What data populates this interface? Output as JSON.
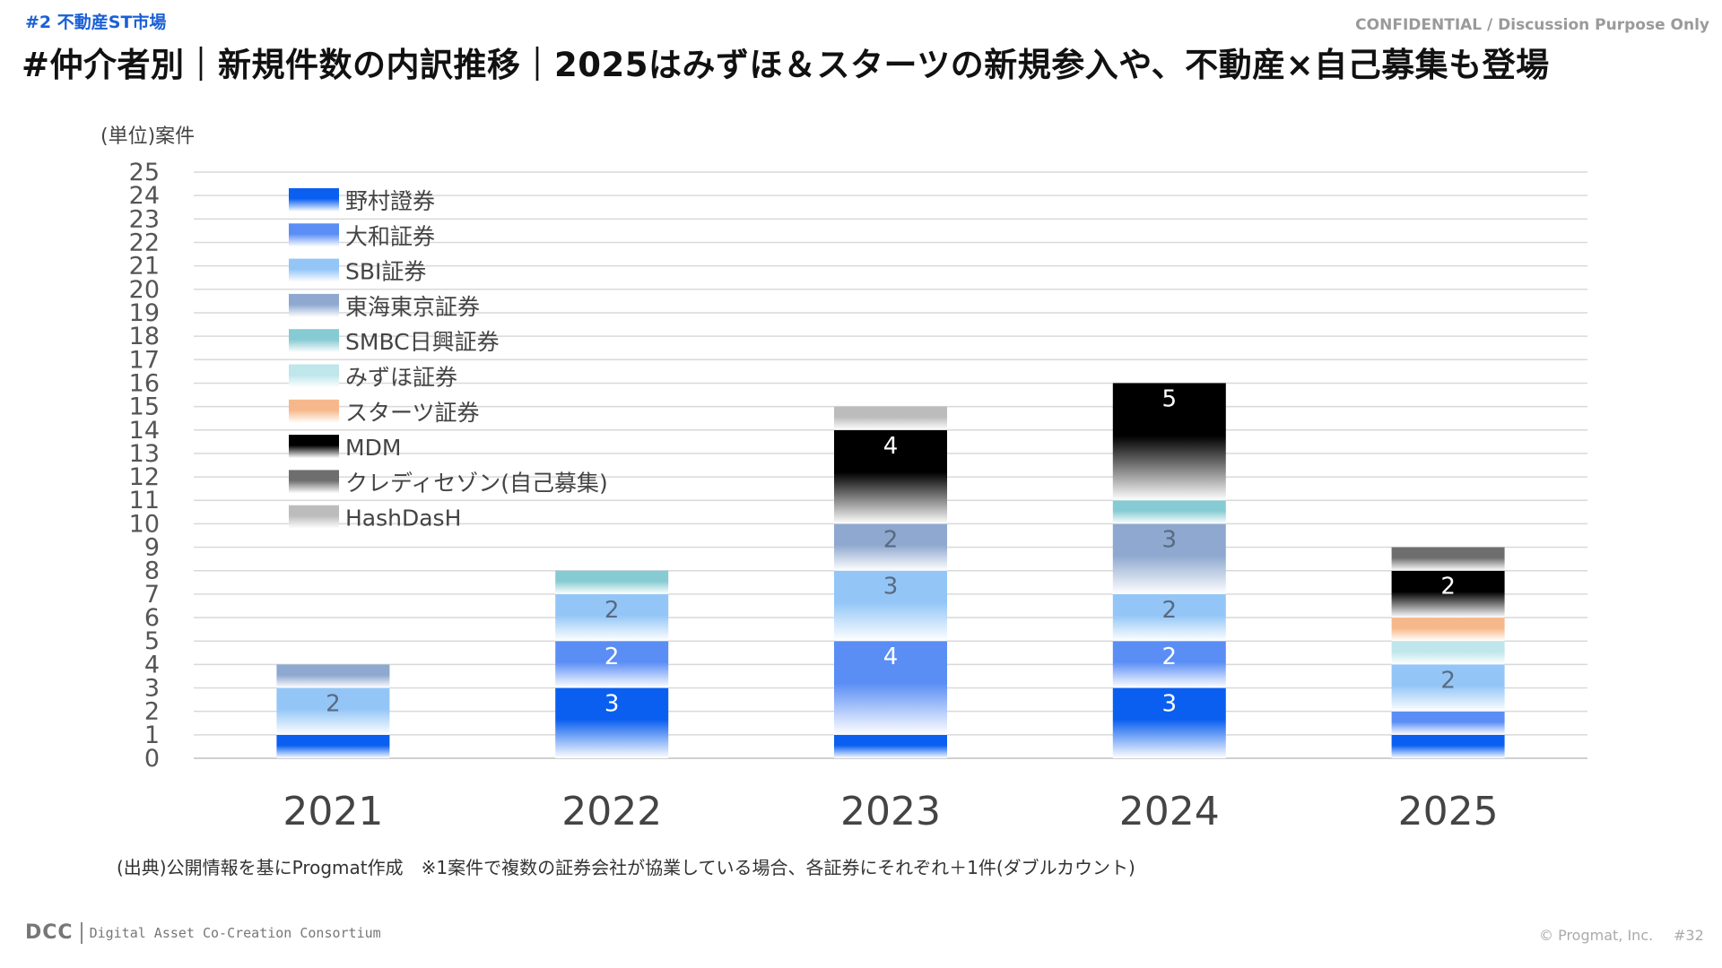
{
  "header": {
    "section_tag": "#2 不動産ST市場",
    "confidential": "CONFIDENTIAL / Discussion Purpose Only",
    "title": "#仲介者別｜新規件数の内訳推移｜2025はみずほ＆スターツの新規参入や、不動産×自己募集も登場"
  },
  "unit_label": "(単位)案件",
  "chart_data": {
    "type": "bar",
    "stacked": true,
    "categories": [
      "2021",
      "2022",
      "2023",
      "2024",
      "2025"
    ],
    "ylim": [
      0,
      25
    ],
    "y_ticks": [
      0,
      1,
      2,
      3,
      4,
      5,
      6,
      7,
      8,
      9,
      10,
      11,
      12,
      13,
      14,
      15,
      16,
      17,
      18,
      19,
      20,
      21,
      22,
      23,
      24,
      25
    ],
    "grid": true,
    "legend_position": "top-left",
    "series": [
      {
        "name": "野村證券",
        "values": [
          1,
          3,
          1,
          3,
          1
        ],
        "color": "#0a5ff0"
      },
      {
        "name": "大和証券",
        "values": [
          0,
          2,
          4,
          2,
          1
        ],
        "color": "#5a8ef5"
      },
      {
        "name": "SBI証券",
        "values": [
          2,
          2,
          3,
          2,
          2
        ],
        "color": "#93c6f7"
      },
      {
        "name": "東海東京証券",
        "values": [
          1,
          0,
          2,
          3,
          0
        ],
        "color": "#8ea8cf"
      },
      {
        "name": "SMBC日興証券",
        "values": [
          0,
          1,
          0,
          1,
          0
        ],
        "color": "#86cbd3"
      },
      {
        "name": "みずほ証券",
        "values": [
          0,
          0,
          0,
          0,
          1
        ],
        "color": "#bfe6ea"
      },
      {
        "name": "スターツ証券",
        "values": [
          0,
          0,
          0,
          0,
          1
        ],
        "color": "#f6b88a"
      },
      {
        "name": "MDM",
        "values": [
          0,
          0,
          4,
          5,
          2
        ],
        "color": "#000000"
      },
      {
        "name": "クレディセゾン(自己募集)",
        "values": [
          0,
          0,
          0,
          0,
          1
        ],
        "color": "#6e6e6e"
      },
      {
        "name": "HashDasH",
        "values": [
          0,
          0,
          1,
          0,
          0
        ],
        "color": "#bcbcbc"
      }
    ],
    "data_labels": [
      {
        "category": "2021",
        "series": "SBI証券",
        "text": "2"
      },
      {
        "category": "2022",
        "series": "野村證券",
        "text": "3"
      },
      {
        "category": "2022",
        "series": "大和証券",
        "text": "2"
      },
      {
        "category": "2022",
        "series": "SBI証券",
        "text": "2"
      },
      {
        "category": "2023",
        "series": "大和証券",
        "text": "4"
      },
      {
        "category": "2023",
        "series": "SBI証券",
        "text": "3"
      },
      {
        "category": "2023",
        "series": "東海東京証券",
        "text": "2"
      },
      {
        "category": "2023",
        "series": "MDM",
        "text": "4"
      },
      {
        "category": "2024",
        "series": "野村證券",
        "text": "3"
      },
      {
        "category": "2024",
        "series": "大和証券",
        "text": "2"
      },
      {
        "category": "2024",
        "series": "SBI証券",
        "text": "2"
      },
      {
        "category": "2024",
        "series": "東海東京証券",
        "text": "3"
      },
      {
        "category": "2024",
        "series": "MDM",
        "text": "5"
      },
      {
        "category": "2025",
        "series": "SBI証券",
        "text": "2"
      },
      {
        "category": "2025",
        "series": "MDM",
        "text": "2"
      }
    ]
  },
  "source_note": "(出典)公開情報を基にProgmat作成　※1案件で複数の証券会社が協業している場合、各証券にそれぞれ＋1件(ダブルカウント)",
  "footer": {
    "logo_mark": "DCC",
    "logo_name": "Digital Asset Co-Creation Consortium",
    "copyright": "© Progmat, Inc.",
    "page_number": "#32"
  }
}
